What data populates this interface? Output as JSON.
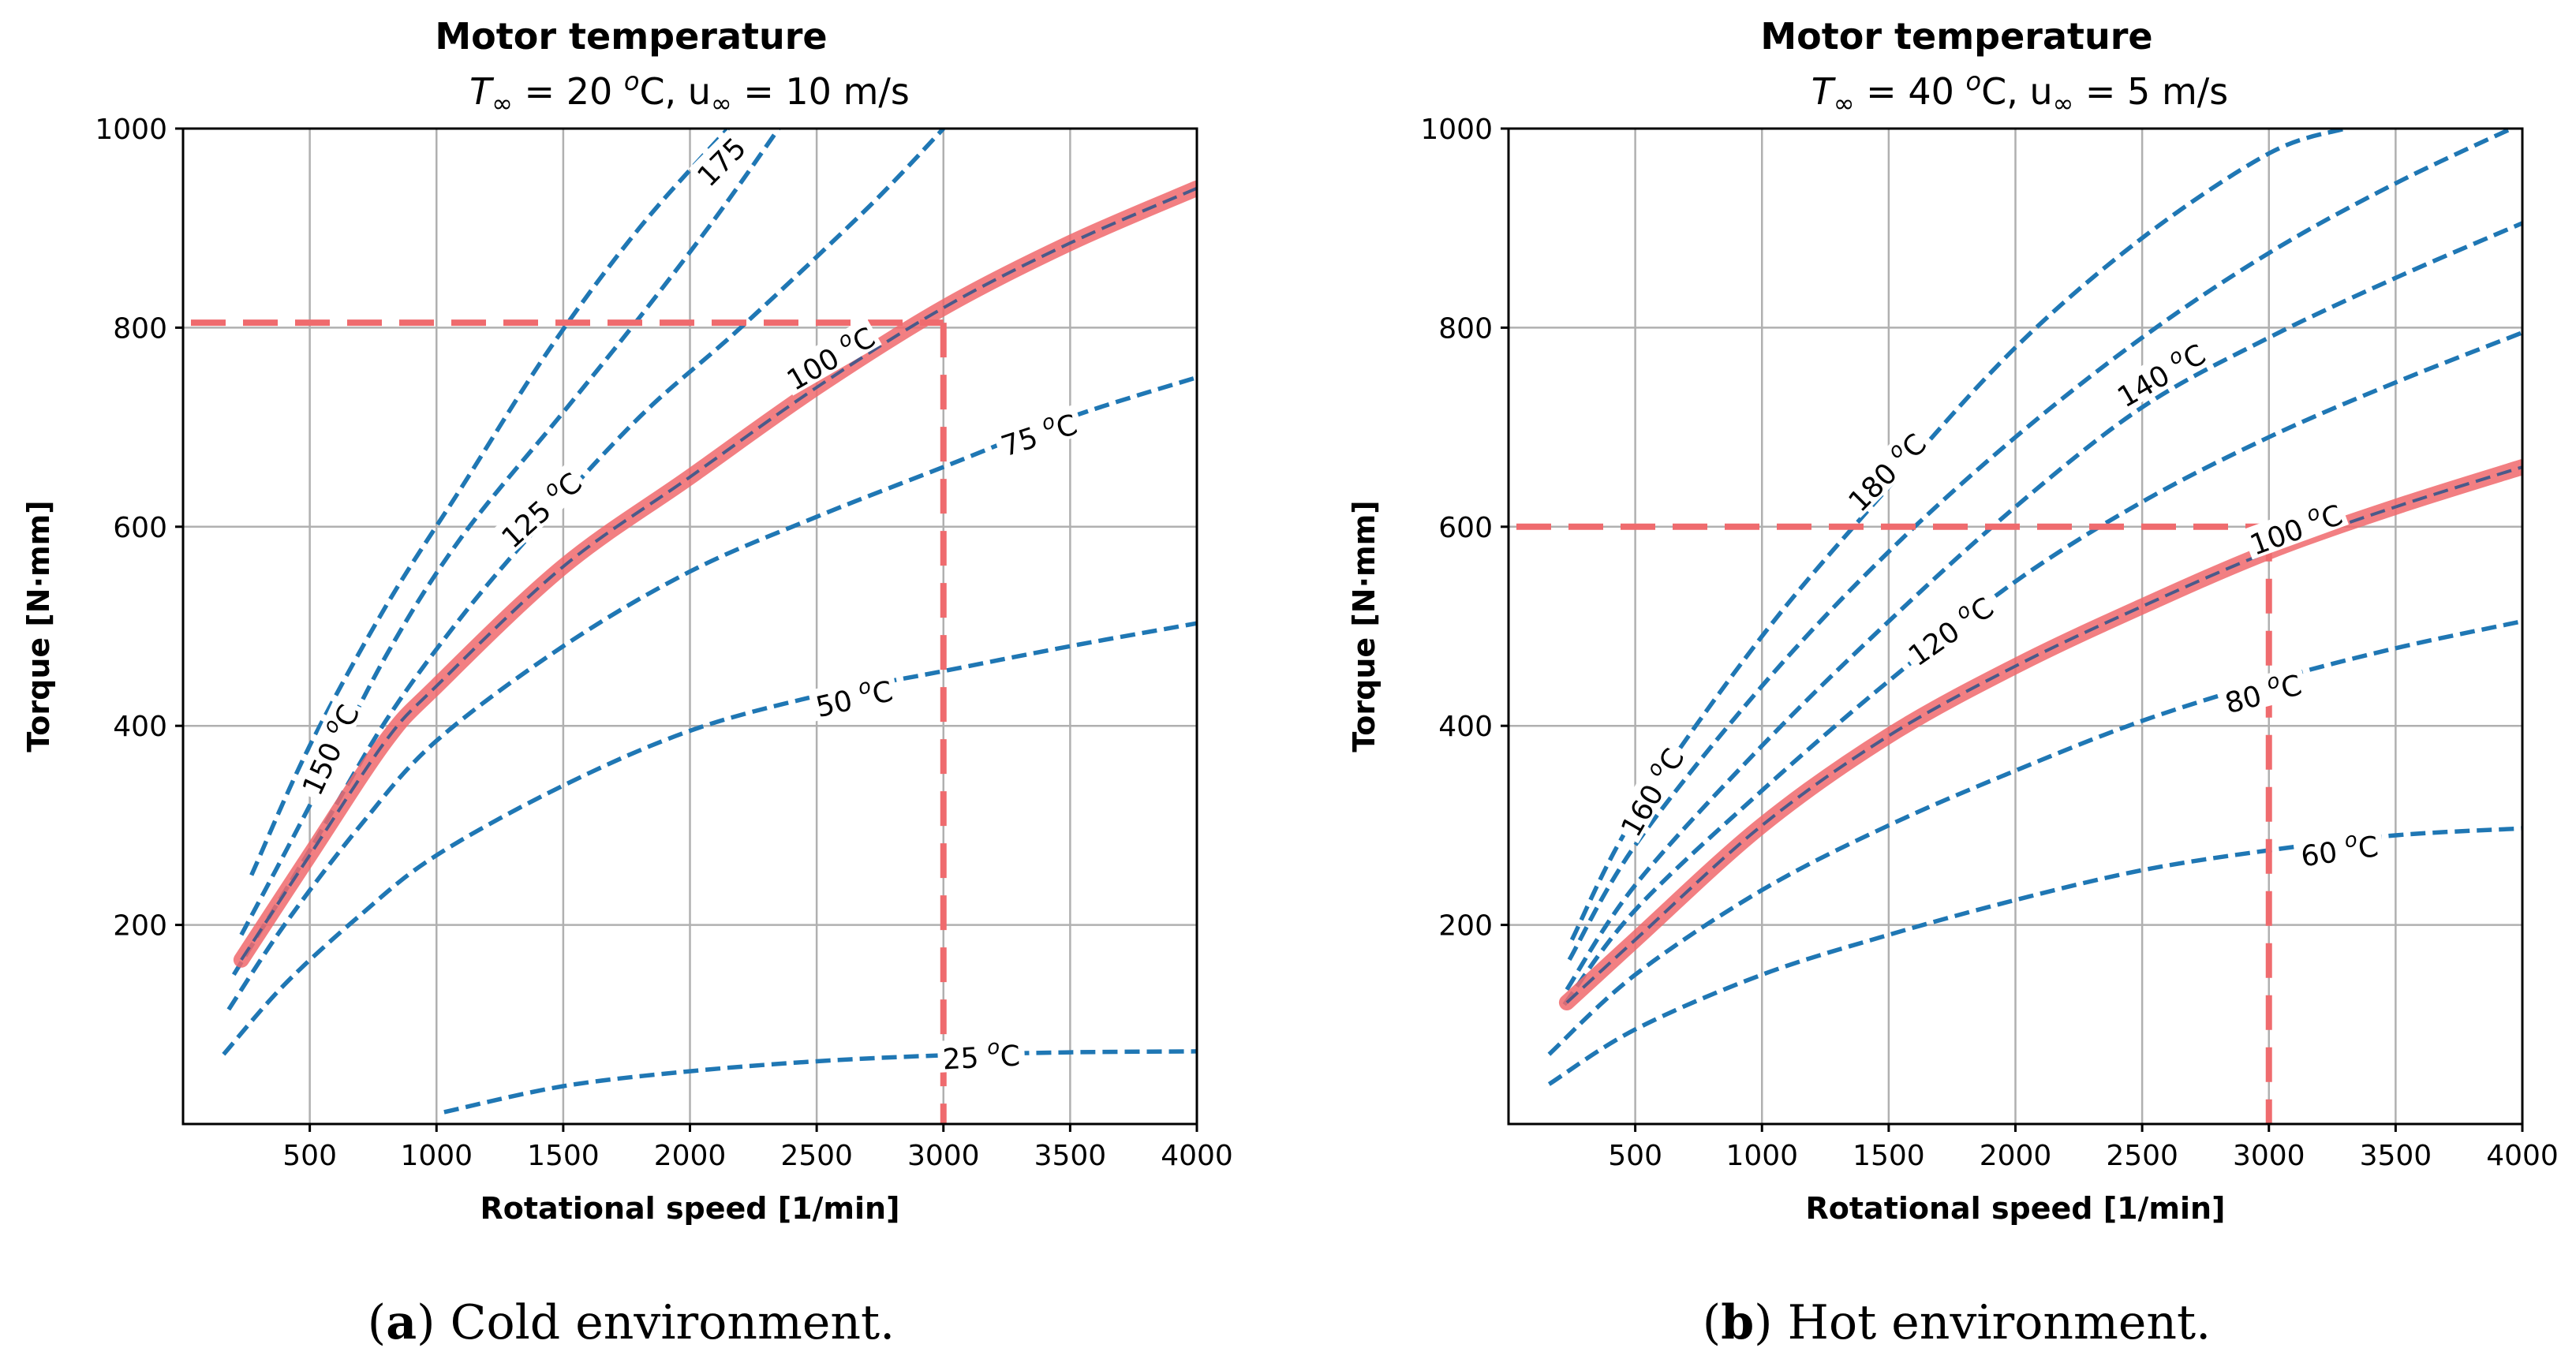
{
  "figure": {
    "colors": {
      "contour": "#1f77b4",
      "operating_curve": "#f0686c",
      "grid": "#b0b0b0"
    }
  },
  "chart_data": [
    {
      "type": "line",
      "title": "Motor temperature",
      "subtitle_pre": "T",
      "subtitle_sub1": "∞",
      "subtitle_mid": " = 20 ",
      "subtitle_sup": "o",
      "subtitle_mid2": "C, u",
      "subtitle_sub2": "∞",
      "subtitle_post": " = 10 m/s",
      "xlabel": "Rotational speed [1/min]",
      "ylabel": "Torque [N·mm]",
      "xlim": [
        0,
        4000
      ],
      "ylim": [
        0,
        1000
      ],
      "xticks": [
        500,
        1000,
        1500,
        2000,
        2500,
        3000,
        3500,
        4000
      ],
      "yticks": [
        200,
        400,
        600,
        800,
        1000
      ],
      "caption_letter": "a",
      "caption_text": "Cold environment.",
      "operating_point": {
        "speed": 3000,
        "torque": 805
      },
      "contours": [
        {
          "label": "25 °C",
          "label_pos": [
            3150,
            65
          ],
          "label_angle": -3,
          "points": [
            [
              1030,
              12
            ],
            [
              1500,
              38
            ],
            [
              2000,
              53
            ],
            [
              2500,
              63
            ],
            [
              3000,
              69
            ],
            [
              3500,
              72
            ],
            [
              4000,
              73
            ]
          ]
        },
        {
          "label": "50 °C",
          "label_pos": [
            2650,
            425
          ],
          "label_angle": -13,
          "points": [
            [
              160,
              70
            ],
            [
              400,
              140
            ],
            [
              700,
              210
            ],
            [
              1000,
              270
            ],
            [
              1500,
              340
            ],
            [
              2000,
              395
            ],
            [
              2500,
              430
            ],
            [
              3000,
              455
            ],
            [
              3500,
              480
            ],
            [
              4000,
              503
            ]
          ]
        },
        {
          "label": "75 °C",
          "label_pos": [
            3380,
            690
          ],
          "label_angle": -18,
          "points": [
            [
              180,
              115
            ],
            [
              400,
              200
            ],
            [
              700,
              300
            ],
            [
              1000,
              385
            ],
            [
              1500,
              480
            ],
            [
              2000,
              555
            ],
            [
              2500,
              610
            ],
            [
              3000,
              660
            ],
            [
              3500,
              710
            ],
            [
              4000,
              750
            ]
          ]
        },
        {
          "label": "125 °C",
          "label_pos": [
            1420,
            615
          ],
          "label_angle": -42,
          "points": [
            [
              200,
              150
            ],
            [
              500,
              275
            ],
            [
              800,
              405
            ],
            [
              1100,
              510
            ],
            [
              1400,
              600
            ],
            [
              1800,
              710
            ],
            [
              2200,
              800
            ],
            [
              2700,
              920
            ],
            [
              3000,
              1000
            ]
          ]
        },
        {
          "label": "150 °C",
          "label_pos": [
            590,
            375
          ],
          "label_angle": -65,
          "points": [
            [
              230,
              190
            ],
            [
              500,
              320
            ],
            [
              800,
              470
            ],
            [
              1100,
              590
            ],
            [
              1500,
              715
            ],
            [
              1800,
              810
            ],
            [
              2100,
              910
            ],
            [
              2350,
              1000
            ]
          ]
        },
        {
          "label": "175",
          "label_pos": [
            2130,
            965
          ],
          "label_angle": -45,
          "points": [
            [
              270,
              250
            ],
            [
              500,
              380
            ],
            [
              800,
              520
            ],
            [
              1100,
              640
            ],
            [
              1450,
              780
            ],
            [
              1800,
              900
            ],
            [
              2150,
              1000
            ]
          ]
        }
      ],
      "operating_curve": {
        "label": "100 °C",
        "label_pos": [
          2560,
          767
        ],
        "label_angle": -30,
        "points": [
          [
            230,
            165
          ],
          [
            500,
            270
          ],
          [
            800,
            385
          ],
          [
            1000,
            440
          ],
          [
            1500,
            560
          ],
          [
            2000,
            650
          ],
          [
            2500,
            740
          ],
          [
            3000,
            820
          ],
          [
            3500,
            885
          ],
          [
            4000,
            940
          ]
        ]
      }
    },
    {
      "type": "line",
      "title": "Motor temperature",
      "subtitle_pre": "T",
      "subtitle_sub1": "∞",
      "subtitle_mid": " = 40 ",
      "subtitle_sup": "o",
      "subtitle_mid2": "C, u",
      "subtitle_sub2": "∞",
      "subtitle_post": " = 5 m/s",
      "xlabel": "Rotational speed [1/min]",
      "ylabel": "Torque [N·mm]",
      "xlim": [
        0,
        4000
      ],
      "ylim": [
        0,
        1000
      ],
      "xticks": [
        500,
        1000,
        1500,
        2000,
        2500,
        3000,
        3500,
        4000
      ],
      "yticks": [
        200,
        400,
        600,
        800,
        1000
      ],
      "caption_letter": "b",
      "caption_text": "Hot environment.",
      "operating_point": {
        "speed": 3000,
        "torque": 600
      },
      "contours": [
        {
          "label": "60 °C",
          "label_pos": [
            3280,
            272
          ],
          "label_angle": -8,
          "points": [
            [
              160,
              40
            ],
            [
              500,
              95
            ],
            [
              1000,
              150
            ],
            [
              1500,
              190
            ],
            [
              2000,
              225
            ],
            [
              2500,
              255
            ],
            [
              3000,
              275
            ],
            [
              3500,
              290
            ],
            [
              4000,
              297
            ]
          ]
        },
        {
          "label": "80 °C",
          "label_pos": [
            2980,
            430
          ],
          "label_angle": -15,
          "points": [
            [
              160,
              70
            ],
            [
              500,
              150
            ],
            [
              1000,
              235
            ],
            [
              1500,
              300
            ],
            [
              2000,
              355
            ],
            [
              2500,
              405
            ],
            [
              3000,
              445
            ],
            [
              3500,
              478
            ],
            [
              4000,
              505
            ]
          ]
        },
        {
          "label": "120 °C",
          "label_pos": [
            1750,
            493
          ],
          "label_angle": -35,
          "points": [
            [
              220,
              120
            ],
            [
              500,
              215
            ],
            [
              1000,
              335
            ],
            [
              1500,
              445
            ],
            [
              2000,
              545
            ],
            [
              2500,
              625
            ],
            [
              3000,
              690
            ],
            [
              3500,
              745
            ],
            [
              4000,
              795
            ]
          ]
        },
        {
          "label": "140 °C",
          "label_pos": [
            2580,
            750
          ],
          "label_angle": -30,
          "points": [
            [
              230,
              135
            ],
            [
              500,
              240
            ],
            [
              1000,
              380
            ],
            [
              1500,
              505
            ],
            [
              2000,
              620
            ],
            [
              2500,
              720
            ],
            [
              3000,
              790
            ],
            [
              3500,
              850
            ],
            [
              4000,
              905
            ]
          ]
        },
        {
          "label": "160 °C",
          "label_pos": [
            575,
            332
          ],
          "label_angle": -60,
          "points": [
            [
              240,
              165
            ],
            [
              500,
              280
            ],
            [
              1000,
              440
            ],
            [
              1500,
              575
            ],
            [
              2000,
              690
            ],
            [
              2500,
              790
            ],
            [
              3000,
              875
            ],
            [
              3500,
              945
            ],
            [
              4000,
              1005
            ]
          ]
        },
        {
          "label": "180 °C",
          "label_pos": [
            1500,
            653
          ],
          "label_angle": -45,
          "points": [
            [
              250,
              185
            ],
            [
              500,
              310
            ],
            [
              1000,
              490
            ],
            [
              1500,
              640
            ],
            [
              2000,
              780
            ],
            [
              2500,
              890
            ],
            [
              3000,
              975
            ],
            [
              3300,
              1000
            ]
          ]
        }
      ],
      "operating_curve": {
        "label": "100 °C",
        "label_pos": [
          3110,
          595
        ],
        "label_angle": -20,
        "points": [
          [
            230,
            122
          ],
          [
            500,
            185
          ],
          [
            1000,
            300
          ],
          [
            1500,
            390
          ],
          [
            2000,
            460
          ],
          [
            2500,
            520
          ],
          [
            3000,
            575
          ],
          [
            3500,
            620
          ],
          [
            4000,
            660
          ]
        ]
      }
    }
  ]
}
